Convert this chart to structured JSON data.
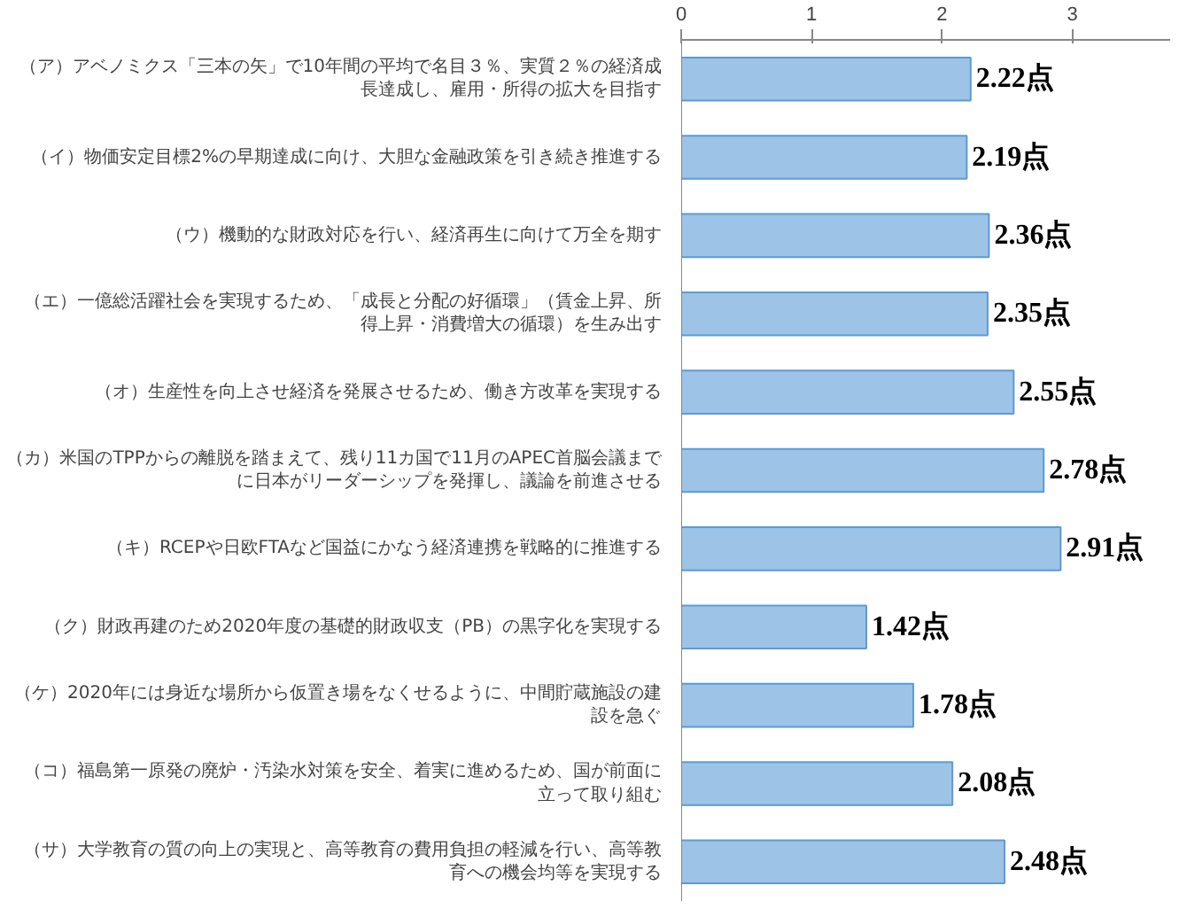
{
  "chart_data": {
    "type": "bar",
    "orientation": "horizontal",
    "categories": [
      "（ア）アベノミクス「三本の矢」で10年間の平均で名目３％、実質２％の経済成長達成し、雇用・所得の拡大を目指す",
      "（イ）物価安定目標2%の早期達成に向け、大胆な金融政策を引き続き推進する",
      "（ウ）機動的な財政対応を行い、経済再生に向けて万全を期す",
      "（エ）一億総活躍社会を実現するため、「成長と分配の好循環」（賃金上昇、所得上昇・消費増大の循環）を生み出す",
      "（オ）生産性を向上させ経済を発展させるため、働き方改革を実現する",
      "（カ）米国のTPPからの離脱を踏まえて、残り11カ国で11月のAPEC首脳会議までに日本がリーダーシップを発揮し、議論を前進させる",
      "（キ）RCEPや日欧FTAなど国益にかなう経済連携を戦略的に推進する",
      "（ク）財政再建のため2020年度の基礎的財政収支（PB）の黒字化を実現する",
      "（ケ）2020年には身近な場所から仮置き場をなくせるように、中間貯蔵施設の建設を急ぐ",
      "（コ）福島第一原発の廃炉・汚染水対策を安全、着実に進めるため、国が前面に立って取り組む",
      "（サ）大学教育の質の向上の実現と、高等教育の費用負担の軽減を行い、高等教育への機会均等を実現する"
    ],
    "values": [
      2.22,
      2.19,
      2.36,
      2.35,
      2.55,
      2.78,
      2.91,
      1.42,
      1.78,
      2.08,
      2.48
    ],
    "value_labels": [
      "2.22点",
      "2.19点",
      "2.36点",
      "2.35点",
      "2.55点",
      "2.78点",
      "2.91点",
      "1.42点",
      "1.78点",
      "2.08点",
      "2.48点"
    ],
    "color": "#9dc3e6",
    "xlim": [
      0,
      3.75
    ],
    "xticks": [
      0,
      1,
      2,
      3
    ],
    "grid": false
  }
}
